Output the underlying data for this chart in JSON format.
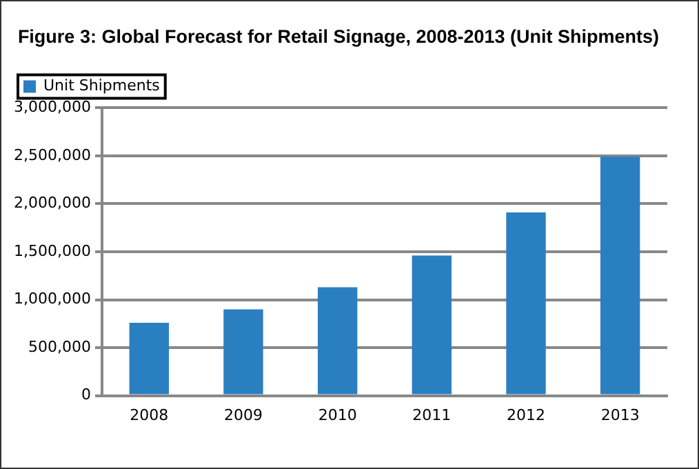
{
  "chart_data": {
    "type": "bar",
    "title": "Figure 3: Global Forecast for Retail Signage, 2008-2013 (Unit Shipments)",
    "categories": [
      "2008",
      "2009",
      "2010",
      "2011",
      "2012",
      "2013"
    ],
    "series": [
      {
        "name": "Unit Shipments",
        "color": "#2a7fc1",
        "values": [
          760000,
          900000,
          1130000,
          1460000,
          1910000,
          2490000
        ]
      }
    ],
    "ylim": [
      0,
      3000000
    ],
    "yticks": [
      {
        "value": 0,
        "label": "0"
      },
      {
        "value": 500000,
        "label": "500,000"
      },
      {
        "value": 1000000,
        "label": "1,000,000"
      },
      {
        "value": 1500000,
        "label": "1,500,000"
      },
      {
        "value": 2000000,
        "label": "2,000,000"
      },
      {
        "value": 2500000,
        "label": "2,500,000"
      },
      {
        "value": 3000000,
        "label": "3,000,000"
      }
    ],
    "grid": "y",
    "legend": "top left"
  }
}
